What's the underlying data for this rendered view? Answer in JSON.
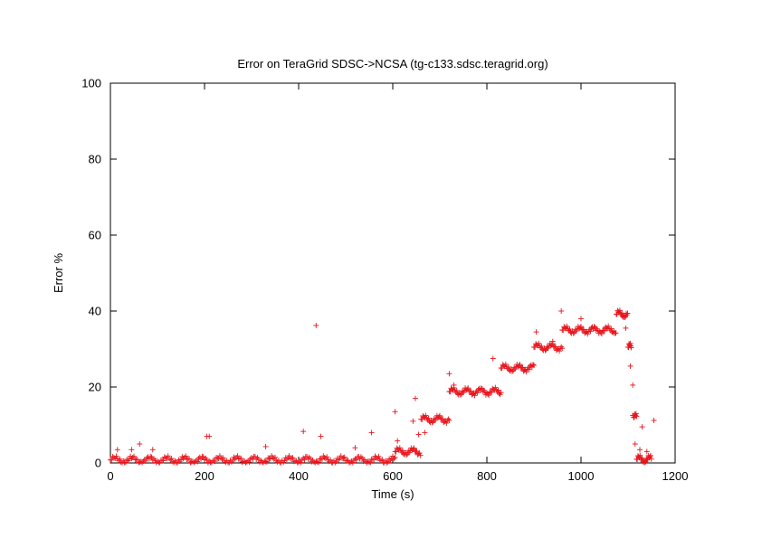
{
  "chart_data": {
    "type": "scatter",
    "title": "Error on TeraGrid SDSC->NCSA (tg-c133.sdsc.teragrid.org)",
    "xlabel": "Time (s)",
    "ylabel": "Error %",
    "xlim": [
      0,
      1200
    ],
    "ylim": [
      0,
      100
    ],
    "xticks": [
      "0",
      "200",
      "400",
      "600",
      "800",
      "1000",
      "1200"
    ],
    "yticks": [
      "0",
      "20",
      "40",
      "60",
      "80",
      "100"
    ],
    "grid": false,
    "marker": "plus",
    "color": "#e8141c",
    "series": [
      {
        "points": [
          [
            15,
            3.5
          ],
          [
            45,
            3.5
          ],
          [
            62,
            5
          ],
          [
            90,
            3.5
          ],
          [
            205,
            7
          ],
          [
            210,
            7
          ],
          [
            330,
            4.3
          ],
          [
            410,
            8.3
          ],
          [
            437,
            36.2
          ],
          [
            447,
            7
          ],
          [
            520,
            4
          ],
          [
            555,
            8
          ],
          [
            605,
            13.5
          ],
          [
            610,
            5.8
          ],
          [
            648,
            17
          ],
          [
            643,
            11
          ],
          [
            655,
            7.5
          ],
          [
            668,
            8
          ],
          [
            720,
            23.5
          ],
          [
            730,
            20.5
          ],
          [
            813,
            27.5
          ],
          [
            905,
            34.5
          ],
          [
            940,
            32
          ],
          [
            958,
            40
          ],
          [
            1000,
            38
          ],
          [
            1095,
            35.5
          ],
          [
            1105,
            25.5
          ],
          [
            1110,
            20.5
          ],
          [
            1115,
            5
          ],
          [
            1125,
            3.5
          ],
          [
            1130,
            9.5
          ],
          [
            1140,
            3
          ],
          [
            1155,
            11.2
          ],
          [
            1090,
            38.5
          ],
          [
            1110,
            12.5
          ]
        ],
        "segments": [
          {
            "x": [
              0,
              605
            ],
            "y": 0.8,
            "step": 2.5
          },
          {
            "x": [
              605,
              660
            ],
            "y": 3.0,
            "step": 2
          },
          {
            "x": [
              660,
              720
            ],
            "y": 11.5,
            "step": 2
          },
          {
            "x": [
              720,
              830
            ],
            "y": 18.8,
            "step": 2
          },
          {
            "x": [
              830,
              900
            ],
            "y": 25.0,
            "step": 2
          },
          {
            "x": [
              900,
              960
            ],
            "y": 30.5,
            "step": 2
          },
          {
            "x": [
              960,
              1075
            ],
            "y": 35.0,
            "step": 2
          },
          {
            "x": [
              1075,
              1100
            ],
            "y": 39.2,
            "step": 1.5
          },
          {
            "x": [
              1100,
              1107
            ],
            "y": 30.5,
            "step": 1
          },
          {
            "x": [
              1112,
              1118
            ],
            "y": 12,
            "step": 1
          },
          {
            "x": [
              1118,
              1150
            ],
            "y": 1.0,
            "step": 1.5
          }
        ]
      }
    ]
  }
}
